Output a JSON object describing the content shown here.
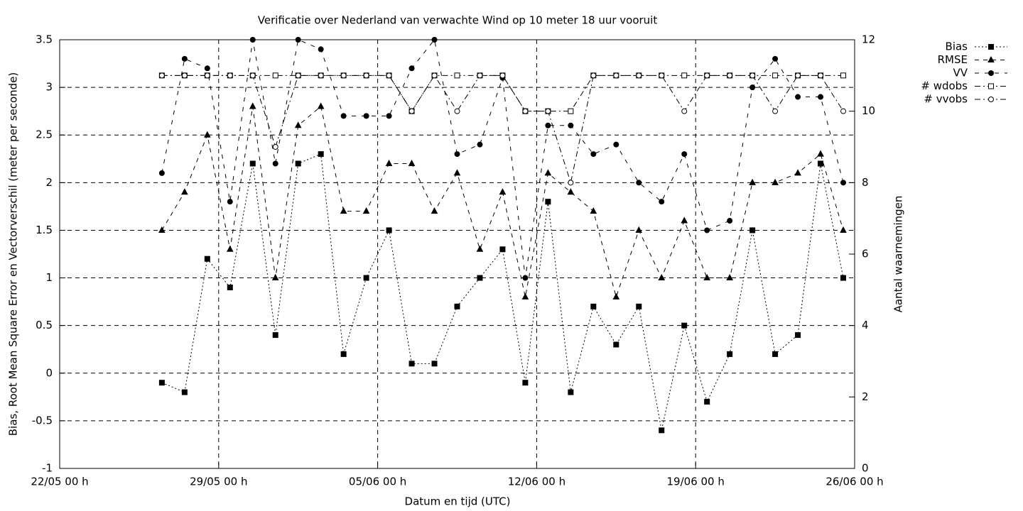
{
  "chart_data": {
    "type": "line",
    "title": "Verificatie over Nederland van verwachte Wind op 10 meter 18 uur vooruit",
    "x_label": "Datum en tijd (UTC)",
    "y_label": "Bias, Root Mean Square Error en Vectorverschil (meter per seconde)",
    "y2_label": "Aantal waarnemingen",
    "x": [
      4.5,
      5.5,
      6.5,
      7.5,
      8.5,
      9.5,
      10.5,
      11.5,
      12.5,
      13.5,
      14.5,
      15.5,
      16.5,
      17.5,
      18.5,
      19.5,
      20.5,
      21.5,
      22.5,
      23.5,
      24.5,
      25.5,
      26.5,
      27.5,
      28.5,
      29.5,
      30.5,
      31.5,
      32.5,
      33.5,
      34.5
    ],
    "xlim": [
      0,
      35
    ],
    "xticks": [
      {
        "value": 0,
        "label": "22/05 00 h"
      },
      {
        "value": 7,
        "label": "29/05 00 h"
      },
      {
        "value": 14,
        "label": "05/06 00 h"
      },
      {
        "value": 21,
        "label": "12/06 00 h"
      },
      {
        "value": 28,
        "label": "19/06 00 h"
      },
      {
        "value": 35,
        "label": "26/06 00 h"
      }
    ],
    "ylim": [
      -1,
      3.5
    ],
    "yticks": [
      -1,
      -0.5,
      0,
      0.5,
      1,
      1.5,
      2,
      2.5,
      3,
      3.5
    ],
    "y2lim": [
      0,
      12
    ],
    "y2ticks": [
      0,
      2,
      4,
      6,
      8,
      10,
      12
    ],
    "grid": true,
    "legend": "top-right-outside",
    "series": [
      {
        "name": "Bias",
        "color": "#000000",
        "marker": "square",
        "filled": true,
        "dash": "2,3",
        "values": [
          -0.1,
          -0.2,
          1.2,
          0.9,
          2.2,
          0.4,
          2.2,
          2.3,
          0.2,
          1.0,
          1.5,
          0.1,
          0.1,
          0.7,
          1.0,
          1.3,
          -0.1,
          1.8,
          -0.2,
          0.7,
          0.3,
          0.7,
          -0.6,
          0.5,
          -0.3,
          0.2,
          1.5,
          0.2,
          0.4,
          2.2,
          1.0
        ]
      },
      {
        "name": "RMSE",
        "color": "#000000",
        "marker": "triangle",
        "filled": true,
        "dash": "6,6",
        "values": [
          1.5,
          1.9,
          2.5,
          1.3,
          2.8,
          1.0,
          2.6,
          2.8,
          1.7,
          1.7,
          2.2,
          2.2,
          1.7,
          2.1,
          1.3,
          1.9,
          0.8,
          2.1,
          1.9,
          1.7,
          0.8,
          1.5,
          1.0,
          1.6,
          1.0,
          1.0,
          2.0,
          2.0,
          2.1,
          2.3,
          1.5
        ]
      },
      {
        "name": "VV",
        "color": "#000000",
        "marker": "circle",
        "filled": true,
        "dash": "6,8",
        "values": [
          2.1,
          3.3,
          3.2,
          1.8,
          3.5,
          2.2,
          3.5,
          3.4,
          2.7,
          2.7,
          2.7,
          3.2,
          3.5,
          2.3,
          2.4,
          3.1,
          1.0,
          2.6,
          2.6,
          2.3,
          2.4,
          2.0,
          1.8,
          2.3,
          1.5,
          1.6,
          3.0,
          3.3,
          2.9,
          2.9,
          2.0
        ]
      },
      {
        "name": "# wdobs",
        "color": "#000000",
        "marker": "square",
        "filled": false,
        "dash": "8,4,2,4",
        "axis": "y2",
        "values": [
          11,
          11,
          11,
          11,
          11,
          11,
          11,
          11,
          11,
          11,
          11,
          10,
          11,
          11,
          11,
          11,
          10,
          10,
          10,
          11,
          11,
          11,
          11,
          11,
          11,
          11,
          11,
          11,
          11,
          11,
          11
        ]
      },
      {
        "name": "# vvobs",
        "color": "#000000",
        "marker": "circle",
        "filled": false,
        "dash": "8,4,2,4",
        "axis": "y2",
        "values": [
          11,
          11,
          11,
          11,
          11,
          9,
          11,
          11,
          11,
          11,
          11,
          10,
          11,
          10,
          11,
          11,
          10,
          10,
          8,
          11,
          11,
          11,
          11,
          10,
          11,
          11,
          11,
          10,
          11,
          11,
          10
        ]
      }
    ]
  }
}
